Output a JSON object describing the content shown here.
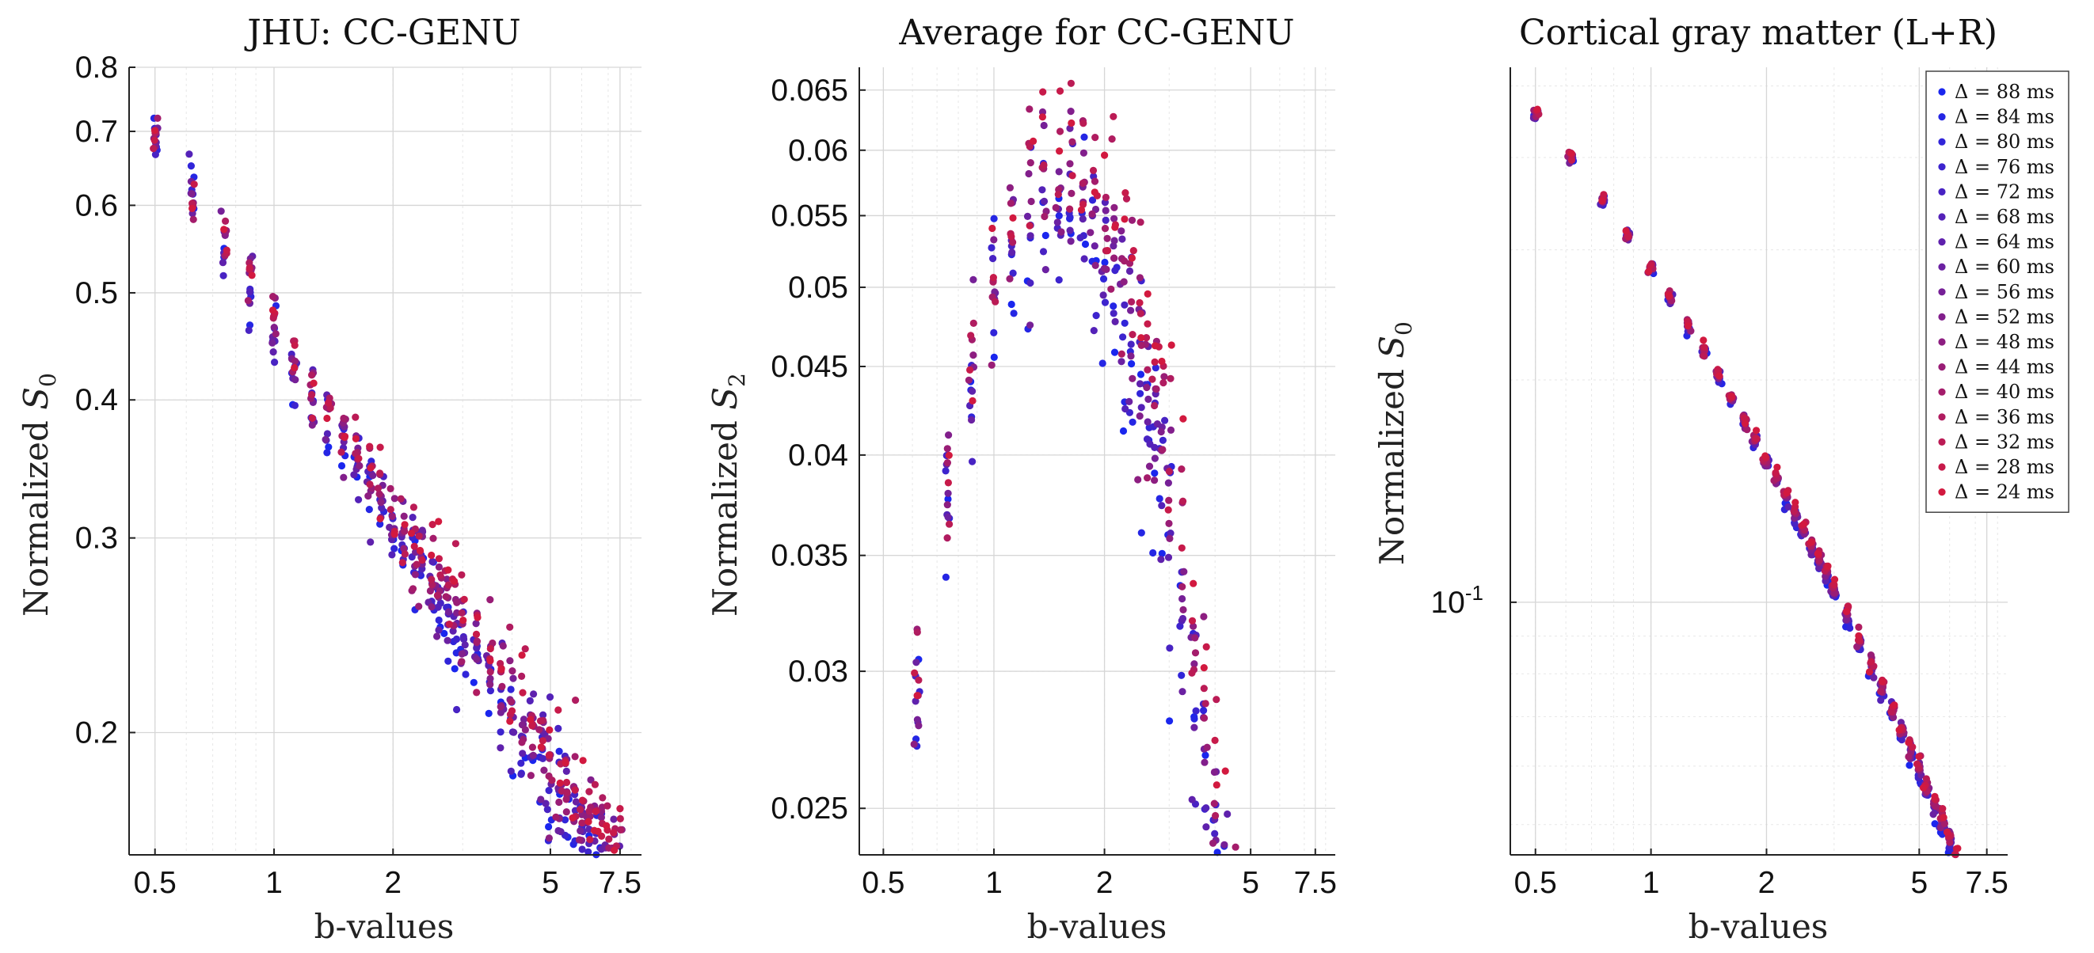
{
  "chart_data": [
    {
      "type": "scatter",
      "title": "JHU: CC-GENU",
      "xlabel": "b-values",
      "ylabel_main": "Normalized ",
      "ylabel_sym": "S",
      "ylabel_sub": "0",
      "x_scale": "log",
      "y_scale": "log",
      "xlim": [
        0.43,
        8.5
      ],
      "ylim": [
        0.155,
        0.8
      ],
      "xticks": [
        0.5,
        1,
        2,
        5,
        7.5
      ],
      "xtick_labels": [
        "0.5",
        "1",
        "2",
        "5",
        "7.5"
      ],
      "yticks": [
        0.2,
        0.3,
        0.4,
        0.5,
        0.6,
        0.7,
        0.8
      ],
      "ytick_labels": [
        "0.2",
        "0.3",
        "0.4",
        "0.5",
        "0.6",
        "0.7",
        "0.8"
      ],
      "grid": true,
      "series_model": "power_law",
      "model": {
        "a": 0.465,
        "p": 0.57,
        "spread": 0.05,
        "delta_trend": 0.05
      }
    },
    {
      "type": "scatter",
      "title": "Average for CC-GENU",
      "xlabel": "b-values",
      "ylabel_main": "Normalized ",
      "ylabel_sym": "S",
      "ylabel_sub": "2",
      "x_scale": "log",
      "y_scale": "log",
      "xlim": [
        0.43,
        8.5
      ],
      "ylim": [
        0.0235,
        0.067
      ],
      "xticks": [
        0.5,
        1,
        2,
        5,
        7.5
      ],
      "xtick_labels": [
        "0.5",
        "1",
        "2",
        "5",
        "7.5"
      ],
      "yticks": [
        0.025,
        0.03,
        0.035,
        0.04,
        0.045,
        0.05,
        0.055,
        0.06,
        0.065
      ],
      "ytick_labels": [
        "0.025",
        "0.03",
        "0.035",
        "0.04",
        "0.045",
        "0.05",
        "0.055",
        "0.06",
        "0.065"
      ],
      "grid": true,
      "series_model": "peak",
      "model": {
        "peak": 0.0575,
        "peak_b": 1.5,
        "k": 0.88,
        "spread": 0.07,
        "delta_trend": 0.09
      }
    },
    {
      "type": "scatter",
      "title": "Cortical gray matter (L+R)",
      "xlabel": "b-values",
      "ylabel_main": "Normalized ",
      "ylabel_sym": "S",
      "ylabel_sub": "0",
      "x_scale": "log",
      "y_scale": "log",
      "xlim": [
        0.43,
        8.5
      ],
      "ylim": [
        0.0455,
        0.53
      ],
      "xticks": [
        0.5,
        1,
        2,
        5,
        7.5
      ],
      "xtick_labels": [
        "0.5",
        "1",
        "2",
        "5",
        "7.5"
      ],
      "yticks": [
        0.1
      ],
      "ytick_labels": [
        "10"
      ],
      "ytick_exponent": "-1",
      "grid": true,
      "legend_position": "top-right",
      "series_model": "curved_decay",
      "model": {
        "a": 0.283,
        "p0": 0.78,
        "p1": 0.12,
        "spread": 0.012,
        "delta_trend": 0.02
      }
    }
  ],
  "b_values": [
    0.5,
    0.62,
    0.75,
    0.87,
    1.0,
    1.12,
    1.25,
    1.37,
    1.5,
    1.62,
    1.75,
    1.87,
    2.0,
    2.12,
    2.25,
    2.37,
    2.5,
    2.62,
    2.75,
    2.87,
    3.0,
    3.25,
    3.5,
    3.75,
    4.0,
    4.25,
    4.5,
    4.75,
    5.0,
    5.25,
    5.5,
    5.75,
    6.0,
    6.25,
    6.5,
    6.75,
    7.0,
    7.25,
    7.5
  ],
  "series": [
    {
      "name": "Δ = 88 ms",
      "delta": 88,
      "color": "#1a26ee"
    },
    {
      "name": "Δ = 84 ms",
      "delta": 84,
      "color": "#2526e4"
    },
    {
      "name": "Δ = 80 ms",
      "delta": 80,
      "color": "#3125d9"
    },
    {
      "name": "Δ = 76 ms",
      "delta": 76,
      "color": "#3d24ce"
    },
    {
      "name": "Δ = 72 ms",
      "delta": 72,
      "color": "#4823c3"
    },
    {
      "name": "Δ = 68 ms",
      "delta": 68,
      "color": "#5422b8"
    },
    {
      "name": "Δ = 64 ms",
      "delta": 64,
      "color": "#5f21ad"
    },
    {
      "name": "Δ = 60 ms",
      "delta": 60,
      "color": "#6b21a2"
    },
    {
      "name": "Δ = 56 ms",
      "delta": 56,
      "color": "#762097"
    },
    {
      "name": "Δ = 52 ms",
      "delta": 52,
      "color": "#821f8c"
    },
    {
      "name": "Δ = 48 ms",
      "delta": 48,
      "color": "#8d1e81"
    },
    {
      "name": "Δ = 44 ms",
      "delta": 44,
      "color": "#991d76"
    },
    {
      "name": "Δ = 40 ms",
      "delta": 40,
      "color": "#a41c6b"
    },
    {
      "name": "Δ = 36 ms",
      "delta": 36,
      "color": "#b01c60"
    },
    {
      "name": "Δ = 32 ms",
      "delta": 32,
      "color": "#bb1b55"
    },
    {
      "name": "Δ = 28 ms",
      "delta": 28,
      "color": "#c71a4a"
    },
    {
      "name": "Δ = 24 ms",
      "delta": 24,
      "color": "#d2193f"
    }
  ]
}
